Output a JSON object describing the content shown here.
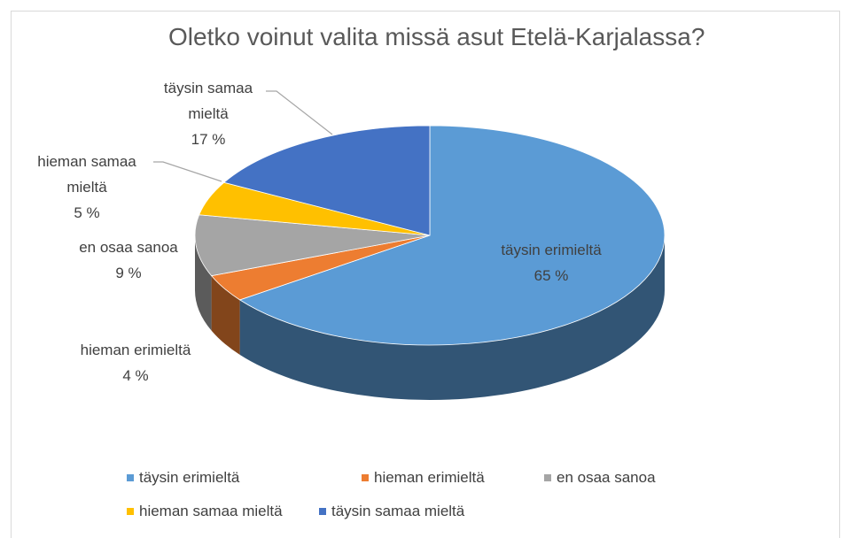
{
  "chart_data": {
    "type": "pie3d",
    "title": "Oletko voinut valita missä asut Etelä-Karjalassa?",
    "categories": [
      "täysin erimieltä",
      "hieman erimieltä",
      "en osaa sanoa",
      "hieman samaa mieltä",
      "täysin samaa mieltä"
    ],
    "values": [
      65,
      4,
      9,
      5,
      17
    ],
    "value_labels": [
      "65 %",
      "4 %",
      "9 %",
      "5 %",
      "17 %"
    ],
    "colors": [
      "#5b9bd5",
      "#ed7d31",
      "#a5a5a5",
      "#ffc000",
      "#4472c4"
    ],
    "legend": "bottom"
  }
}
